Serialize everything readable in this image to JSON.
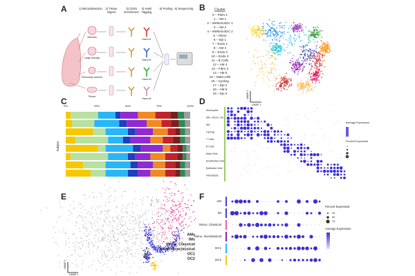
{
  "panels": {
    "A": {
      "letter": "A",
      "steps": [
        [
          "1) Microdissection"
        ],
        [
          "2) Tissue",
          "Digest"
        ],
        [
          "3) CD45",
          "Enrichment"
        ],
        [
          "4) Hash",
          "Tagging"
        ],
        [
          "5) Pooling"
        ],
        [
          "6) Sequencing"
        ]
      ],
      "tissues": [
        "Alveolus",
        "Large airways",
        "Pulmonary arteries",
        "Pleura"
      ],
      "hashes": [
        "Hash #1",
        "Hash #2",
        "Hash #3",
        "Hash #4"
      ]
    },
    "B": {
      "letter": "B",
      "legend_title": "Cluster",
      "clusters": [
        {
          "name": "0 – Fibro 1",
          "color": "#f2c94c"
        },
        {
          "name": "1 – AM 1",
          "color": "#29b6f6"
        },
        {
          "name": "2 – IM/Mono/DC 1",
          "color": "#1e88e5"
        },
        {
          "name": "3 – AM 2",
          "color": "#26c6da"
        },
        {
          "name": "4 – IM/Mono/DC 2",
          "color": "#3949ab"
        },
        {
          "name": "5 – Mono",
          "color": "#8e24aa"
        },
        {
          "name": "6 – Epi 1",
          "color": "#ef6c8a"
        },
        {
          "name": "7 – Endo 1",
          "color": "#e53935"
        },
        {
          "name": "8 – AM 3",
          "color": "#43a047"
        },
        {
          "name": "9 – Endo 2",
          "color": "#d81b60"
        },
        {
          "name": "10 – Endo 3",
          "color": "#fb8c00"
        },
        {
          "name": "11 – B Cells",
          "color": "#6d4c41"
        },
        {
          "name": "12 – AM 4",
          "color": "#9e9d24"
        },
        {
          "name": "13 – Fibro 2",
          "color": "#ffb74d"
        },
        {
          "name": "14 – AM 5",
          "color": "#00897b"
        },
        {
          "name": "15 – Mast cells",
          "color": "#c62828"
        },
        {
          "name": "16 – Cycling",
          "color": "#fdd835"
        },
        {
          "name": "17 – Epi 2",
          "color": "#ab47bc"
        },
        {
          "name": "18 – AM 6",
          "color": "#5d4037"
        },
        {
          "name": "19 – Epi 3",
          "color": "#7cb342"
        }
      ],
      "x_label": "UMAP 1",
      "y_label": "UMAP 2"
    },
    "C": {
      "letter": "C",
      "ticks": [
        "0%",
        "25%",
        "50%",
        "75%",
        "100%"
      ],
      "y_label": "Subject",
      "colors": [
        "#f5c800",
        "#b8e0a0",
        "#29b6f6",
        "#1e3fbf",
        "#8e2bd1",
        "#f08a24",
        "#c0242a",
        "#7a1f1f",
        "#2e8b57",
        "#9e9e9e"
      ],
      "rows": [
        [
          4,
          22,
          14,
          4,
          14,
          14,
          12,
          6,
          5,
          5
        ],
        [
          5,
          18,
          20,
          6,
          16,
          12,
          8,
          6,
          5,
          4
        ],
        [
          22,
          10,
          18,
          6,
          14,
          12,
          6,
          4,
          4,
          4
        ],
        [
          8,
          26,
          12,
          6,
          16,
          10,
          8,
          6,
          4,
          4
        ],
        [
          26,
          6,
          22,
          6,
          18,
          6,
          6,
          4,
          3,
          3
        ],
        [
          4,
          30,
          16,
          6,
          12,
          12,
          10,
          4,
          3,
          3
        ],
        [
          14,
          18,
          20,
          6,
          12,
          10,
          8,
          4,
          4,
          4
        ],
        [
          20,
          12,
          18,
          8,
          10,
          12,
          8,
          4,
          4,
          4
        ]
      ]
    },
    "D": {
      "letter": "D",
      "groups": [
        "Monocytes",
        "IMs / Mono / DCs",
        "AM",
        "Cycling",
        "T Cells",
        "B Cells",
        "Mast Cells",
        "Endothelial Cells",
        "Epithelial Cells",
        "Fibroblasts"
      ],
      "legend_avg": "Average Expression",
      "legend_pct": "Percent Expressed"
    },
    "E": {
      "letter": "E",
      "legend": [
        {
          "name": "AMs",
          "color": "#c9c9c9"
        },
        {
          "name": "IMs",
          "color": "#3f3fd6"
        },
        {
          "name": "Mono, Classical",
          "color": "#e85aa9"
        },
        {
          "name": "Mono, Nonclassical",
          "color": "#2a2a8c"
        },
        {
          "name": "DC1",
          "color": "#29b6f6"
        },
        {
          "name": "DC2",
          "color": "#f5c800"
        }
      ],
      "x_label": "UMAP 1",
      "y_label": "UMAP 2"
    },
    "F": {
      "letter": "F",
      "rows": [
        "AM",
        "IM",
        "Mono, Classical",
        "Mono, Nonclassical",
        "DC1",
        "DC2"
      ],
      "legend_pct": "Percent Expressed",
      "pct_ticks": [
        "25",
        "50",
        "75"
      ],
      "legend_avg": "Average Expression"
    }
  }
}
